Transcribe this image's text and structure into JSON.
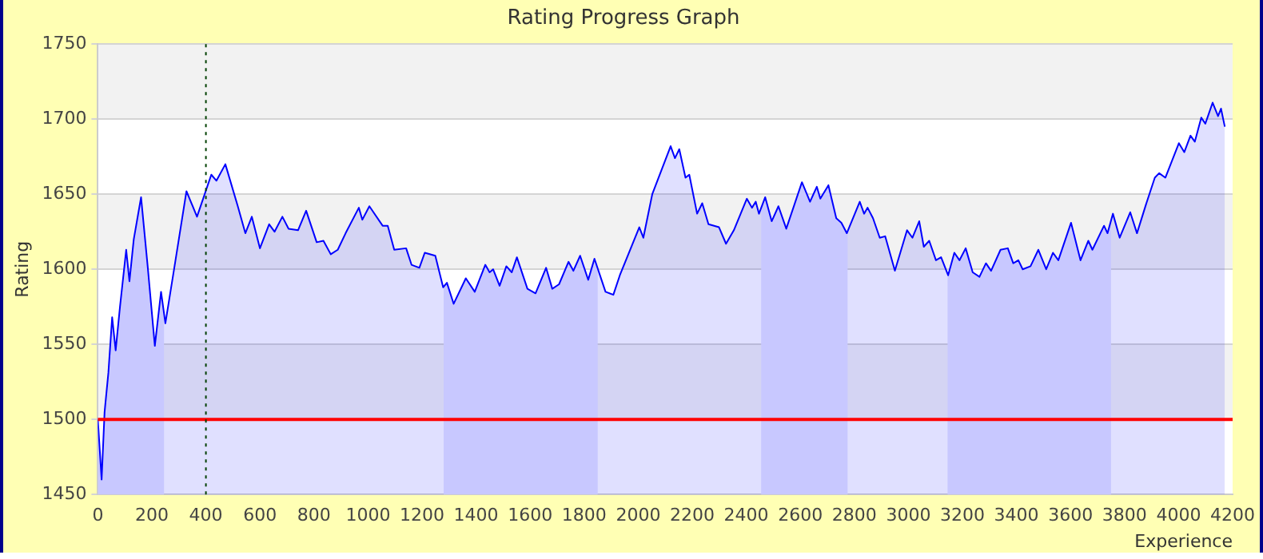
{
  "chart_data": {
    "type": "area",
    "title": "Rating Progress Graph",
    "xlabel": "Experience",
    "ylabel": "Rating",
    "xlim": [
      0,
      4200
    ],
    "xticks": [
      0,
      200,
      400,
      600,
      800,
      1000,
      1200,
      1400,
      1600,
      1800,
      2000,
      2200,
      2400,
      2600,
      2800,
      3000,
      3200,
      3400,
      3600,
      3800,
      4000,
      4200
    ],
    "ylim": [
      1450,
      1750
    ],
    "yticks": [
      1450,
      1500,
      1550,
      1600,
      1650,
      1700,
      1750
    ],
    "grid": "y",
    "legend": false,
    "marker": "none",
    "line_style": "solid",
    "x": [
      0,
      14,
      25,
      39,
      53,
      66,
      82,
      105,
      117,
      133,
      160,
      185,
      211,
      234,
      250,
      283,
      328,
      351,
      367,
      420,
      439,
      472,
      518,
      546,
      570,
      600,
      634,
      654,
      683,
      706,
      741,
      771,
      810,
      835,
      862,
      888,
      917,
      966,
      979,
      1005,
      1054,
      1073,
      1097,
      1141,
      1161,
      1190,
      1210,
      1249,
      1278,
      1292,
      1317,
      1362,
      1395,
      1434,
      1450,
      1463,
      1487,
      1512,
      1532,
      1551,
      1590,
      1620,
      1659,
      1682,
      1707,
      1742,
      1760,
      1785,
      1815,
      1838,
      1879,
      1908,
      1932,
      2004,
      2019,
      2052,
      2120,
      2136,
      2152,
      2175,
      2189,
      2218,
      2237,
      2260,
      2299,
      2325,
      2354,
      2402,
      2421,
      2435,
      2447,
      2470,
      2494,
      2519,
      2548,
      2606,
      2636,
      2661,
      2674,
      2704,
      2733,
      2752,
      2772,
      2820,
      2836,
      2849,
      2869,
      2894,
      2914,
      2950,
      2995,
      3015,
      3040,
      3057,
      3077,
      3102,
      3121,
      3147,
      3170,
      3189,
      3212,
      3238,
      3263,
      3287,
      3306,
      3341,
      3368,
      3388,
      3407,
      3423,
      3452,
      3481,
      3510,
      3535,
      3555,
      3602,
      3637,
      3666,
      3681,
      3724,
      3737,
      3757,
      3782,
      3821,
      3846,
      3879,
      3912,
      3928,
      3951,
      4001,
      4021,
      4044,
      4060,
      4084,
      4099,
      4126,
      4146,
      4157,
      4171
    ],
    "series": [
      {
        "color": "#0000ff",
        "values": [
          1500,
          1460,
          1505,
          1531,
          1568,
          1546,
          1575,
          1613,
          1592,
          1620,
          1648,
          1601,
          1549,
          1585,
          1564,
          1601,
          1652,
          1642,
          1635,
          1663,
          1659,
          1670,
          1642,
          1624,
          1635,
          1614,
          1630,
          1625,
          1635,
          1627,
          1626,
          1639,
          1618,
          1619,
          1610,
          1613,
          1624,
          1641,
          1633,
          1642,
          1629,
          1629,
          1613,
          1614,
          1603,
          1601,
          1611,
          1609,
          1588,
          1591,
          1577,
          1594,
          1585,
          1603,
          1598,
          1600,
          1589,
          1602,
          1598,
          1608,
          1587,
          1584,
          1601,
          1587,
          1590,
          1605,
          1599,
          1609,
          1593,
          1607,
          1585,
          1583,
          1596,
          1628,
          1621,
          1650,
          1682,
          1674,
          1680,
          1661,
          1663,
          1637,
          1644,
          1630,
          1628,
          1617,
          1626,
          1647,
          1641,
          1645,
          1637,
          1648,
          1632,
          1642,
          1627,
          1658,
          1645,
          1655,
          1647,
          1656,
          1634,
          1631,
          1624,
          1645,
          1637,
          1641,
          1634,
          1621,
          1622,
          1599,
          1626,
          1621,
          1632,
          1615,
          1619,
          1606,
          1608,
          1596,
          1611,
          1606,
          1614,
          1598,
          1595,
          1604,
          1599,
          1613,
          1614,
          1604,
          1606,
          1600,
          1602,
          1613,
          1600,
          1611,
          1606,
          1631,
          1606,
          1619,
          1613,
          1629,
          1624,
          1637,
          1621,
          1638,
          1624,
          1643,
          1661,
          1664,
          1661,
          1684,
          1678,
          1689,
          1685,
          1701,
          1697,
          1711,
          1702,
          1707,
          1695
        ]
      }
    ],
    "bands": [
      {
        "axis": "x",
        "from": 0,
        "to": 245,
        "color": "#e4e4ff"
      },
      {
        "axis": "x",
        "from": 1280,
        "to": 1850,
        "color": "#e4e4ff"
      },
      {
        "axis": "x",
        "from": 2455,
        "to": 2775,
        "color": "#e4e4ff"
      },
      {
        "axis": "x",
        "from": 3145,
        "to": 3750,
        "color": "#e4e4ff"
      }
    ],
    "ref_lines": [
      {
        "axis": "y",
        "value": 1500,
        "color": "#ff0000",
        "line_style": "solid"
      },
      {
        "axis": "x",
        "value": 400,
        "color": "#004000",
        "line_style": "dotted"
      }
    ]
  }
}
